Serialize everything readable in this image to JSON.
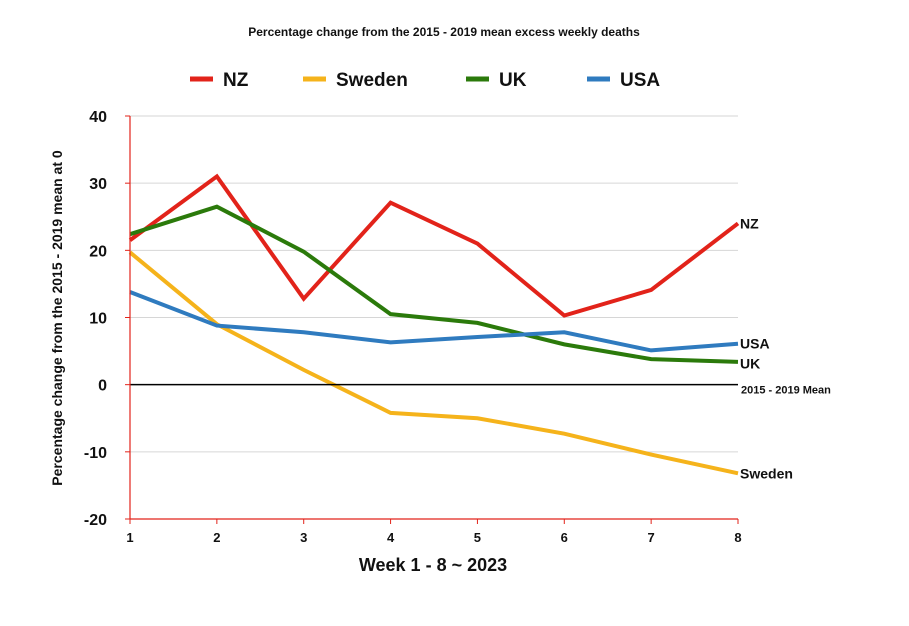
{
  "chart_data": {
    "type": "line",
    "title": "Percentage change from the 2015 - 2019 mean excess weekly deaths",
    "xlabel": "Week 1 - 8 ~ 2023",
    "ylabel": "Percentage change from the 2015 - 2019 mean at 0",
    "x": [
      1,
      2,
      3,
      4,
      5,
      6,
      7,
      8
    ],
    "x_tick_labels": [
      "1",
      "2",
      "3",
      "4",
      "5",
      "6",
      "7",
      "8"
    ],
    "ylim": [
      -20,
      40
    ],
    "y_ticks": [
      40,
      30,
      20,
      10,
      0,
      -10,
      -20
    ],
    "grid": true,
    "legend_position": "top",
    "series": [
      {
        "name": "NZ",
        "color": "#e2231a",
        "end_label": "NZ",
        "values": [
          21.5,
          31,
          12.8,
          27.1,
          21,
          10.3,
          14.1,
          24
        ]
      },
      {
        "name": "Sweden",
        "color": "#f5b31b",
        "end_label": "Sweden",
        "values": [
          19.7,
          9,
          2.2,
          -4.2,
          -5,
          -7.3,
          -10.4,
          -13.2
        ]
      },
      {
        "name": "UK",
        "color": "#2b7a0b",
        "end_label": "UK",
        "values": [
          22.4,
          26.5,
          19.8,
          10.5,
          9.2,
          6,
          3.8,
          3.4
        ]
      },
      {
        "name": "USA",
        "color": "#2f7bbf",
        "end_label": "USA",
        "values": [
          13.8,
          8.8,
          7.8,
          6.3,
          7.1,
          7.8,
          5.1,
          6.1
        ]
      }
    ],
    "reference_line": {
      "value": 0,
      "label": "2015 - 2019 Mean",
      "color": "#000000"
    },
    "axis_color": "#e2231a",
    "grid_color": "#d6d6d6"
  }
}
